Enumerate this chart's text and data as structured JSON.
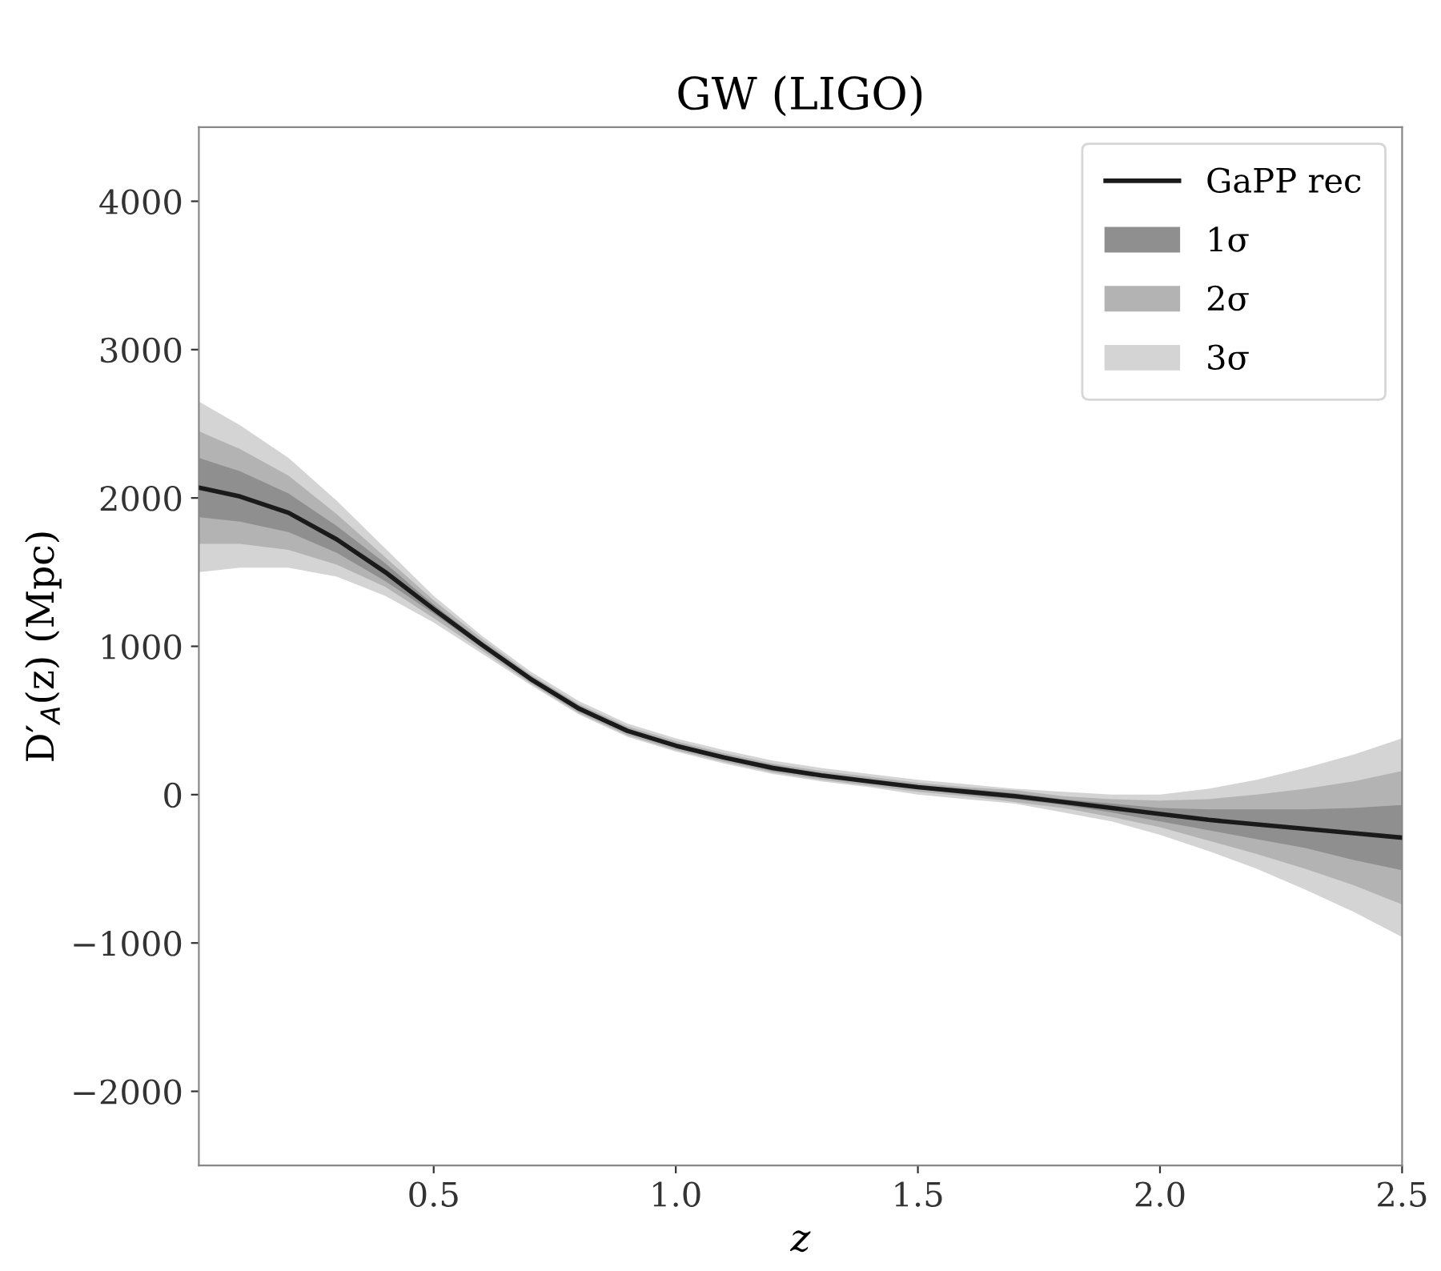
{
  "chart_data": {
    "type": "line",
    "title": "GW (LIGO)",
    "xlabel": "z",
    "ylabel": "D′$_{A}$(z) (Mpc)",
    "x": [
      0.015,
      0.1,
      0.2,
      0.3,
      0.4,
      0.5,
      0.6,
      0.7,
      0.8,
      0.9,
      1.0,
      1.1,
      1.2,
      1.3,
      1.4,
      1.5,
      1.6,
      1.7,
      1.8,
      1.9,
      2.0,
      2.1,
      2.2,
      2.3,
      2.4,
      2.5
    ],
    "series": [
      {
        "name": "3σ",
        "color": "#d4d4d4",
        "values": [
          null,
          null,
          null,
          null,
          null,
          null,
          null,
          null,
          null,
          null,
          null,
          null,
          null,
          null,
          null,
          null,
          null,
          null,
          null,
          null,
          null,
          null,
          null,
          null,
          null,
          null
        ],
        "upper": [
          2650,
          2490,
          2270,
          1980,
          1660,
          1340,
          1070,
          830,
          630,
          480,
          380,
          300,
          230,
          180,
          140,
          100,
          70,
          40,
          20,
          0,
          0,
          40,
          100,
          180,
          270,
          380
        ],
        "lower": [
          1500,
          1530,
          1530,
          1470,
          1340,
          1160,
          950,
          740,
          540,
          390,
          290,
          210,
          140,
          90,
          50,
          0,
          -30,
          -60,
          -120,
          -180,
          -270,
          -380,
          -500,
          -640,
          -790,
          -960
        ]
      },
      {
        "name": "2σ",
        "color": "#b3b3b3",
        "values": [
          null,
          null,
          null,
          null,
          null,
          null,
          null,
          null,
          null,
          null,
          null,
          null,
          null,
          null,
          null,
          null,
          null,
          null,
          null,
          null,
          null,
          null,
          null,
          null,
          null,
          null
        ],
        "upper": [
          2450,
          2330,
          2150,
          1890,
          1600,
          1310,
          1050,
          810,
          610,
          460,
          360,
          280,
          210,
          160,
          120,
          80,
          50,
          30,
          -10,
          -30,
          -40,
          -30,
          0,
          40,
          90,
          160
        ],
        "lower": [
          1690,
          1690,
          1650,
          1550,
          1400,
          1190,
          970,
          750,
          550,
          400,
          300,
          220,
          150,
          100,
          60,
          20,
          -10,
          -50,
          -90,
          -150,
          -220,
          -310,
          -400,
          -500,
          -610,
          -740
        ]
      },
      {
        "name": "1σ",
        "color": "#8f8f8f",
        "values": [
          null,
          null,
          null,
          null,
          null,
          null,
          null,
          null,
          null,
          null,
          null,
          null,
          null,
          null,
          null,
          null,
          null,
          null,
          null,
          null,
          null,
          null,
          null,
          null,
          null,
          null
        ],
        "upper": [
          2270,
          2180,
          2030,
          1810,
          1560,
          1280,
          1030,
          800,
          600,
          440,
          340,
          260,
          200,
          140,
          100,
          60,
          40,
          10,
          -30,
          -60,
          -90,
          -100,
          -100,
          -100,
          -90,
          -70
        ],
        "lower": [
          1870,
          1840,
          1770,
          1630,
          1440,
          1220,
          990,
          770,
          560,
          420,
          320,
          240,
          160,
          120,
          80,
          40,
          0,
          -30,
          -70,
          -120,
          -180,
          -240,
          -300,
          -360,
          -440,
          -510
        ]
      },
      {
        "name": "GaPP rec",
        "color": "#1a1a1a",
        "values": [
          2070,
          2010,
          1900,
          1720,
          1500,
          1250,
          1010,
          780,
          580,
          430,
          330,
          250,
          180,
          130,
          90,
          50,
          20,
          -10,
          -50,
          -90,
          -130,
          -170,
          -200,
          -230,
          -260,
          -290
        ]
      }
    ],
    "xlim": [
      0.015,
      2.5
    ],
    "xticks": [
      0.5,
      {
        "value": 1,
        "label": "1.0"
      },
      1.5,
      {
        "value": 2,
        "label": "2.0"
      },
      2.5
    ],
    "ylim": [
      -2500,
      4500
    ],
    "yticks": [
      {
        "value": -2000,
        "label": "−2000"
      },
      {
        "value": -1000,
        "label": "−1000"
      },
      0,
      1000,
      2000,
      3000,
      4000
    ],
    "legend": "top right",
    "grid": false
  }
}
